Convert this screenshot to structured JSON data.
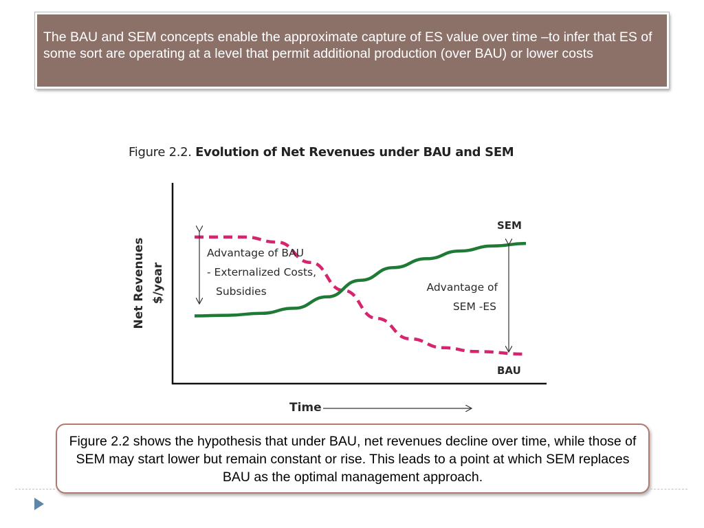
{
  "header": {
    "text": "The BAU and SEM concepts enable the approximate capture of ES value over time –to infer that ES of some sort are operating at a level that permit additional production (over BAU) or lower costs"
  },
  "figure": {
    "number": "Figure 2.2.",
    "caption": "Evolution of Net Revenues under BAU and SEM"
  },
  "chart_data": {
    "type": "line",
    "xlabel": "Time",
    "ylabel": [
      "Net Revenues",
      "$/year"
    ],
    "series": [
      {
        "name": "BAU",
        "style": "dashed",
        "color": "#d6246e",
        "points": [
          [
            0.0,
            0.92
          ],
          [
            0.15,
            0.92
          ],
          [
            0.25,
            0.88
          ],
          [
            0.35,
            0.72
          ],
          [
            0.45,
            0.5
          ],
          [
            0.55,
            0.28
          ],
          [
            0.65,
            0.12
          ],
          [
            0.75,
            0.05
          ],
          [
            0.85,
            0.02
          ],
          [
            1.0,
            0.0
          ]
        ]
      },
      {
        "name": "SEM",
        "style": "solid",
        "color": "#1f7a35",
        "points": [
          [
            0.0,
            0.3
          ],
          [
            0.1,
            0.305
          ],
          [
            0.2,
            0.32
          ],
          [
            0.3,
            0.36
          ],
          [
            0.4,
            0.45
          ],
          [
            0.5,
            0.58
          ],
          [
            0.6,
            0.68
          ],
          [
            0.7,
            0.75
          ],
          [
            0.8,
            0.81
          ],
          [
            0.9,
            0.85
          ],
          [
            1.0,
            0.87
          ]
        ]
      }
    ],
    "annotations": {
      "left_arrow_lines": [
        "Advantage of BAU",
        "- Externalized Costs,",
        "Subsidies"
      ],
      "right_arrow_lines": [
        "Advantage of",
        "SEM -ES"
      ]
    },
    "grid": false,
    "legend": "none"
  },
  "caption": {
    "text": "Figure 2.2 shows the hypothesis that under BAU, net revenues decline over time, while those of SEM may start lower but remain constant or rise. This leads to a point at which SEM replaces BAU as the optimal management approach."
  },
  "colors": {
    "header_bg": "#8c7169",
    "caption_border": "#b07a6e",
    "bau": "#d6246e",
    "sem": "#1f7a35",
    "bullet": "#5e86a8"
  },
  "icons": {
    "bullet": "triangle-right-icon"
  }
}
